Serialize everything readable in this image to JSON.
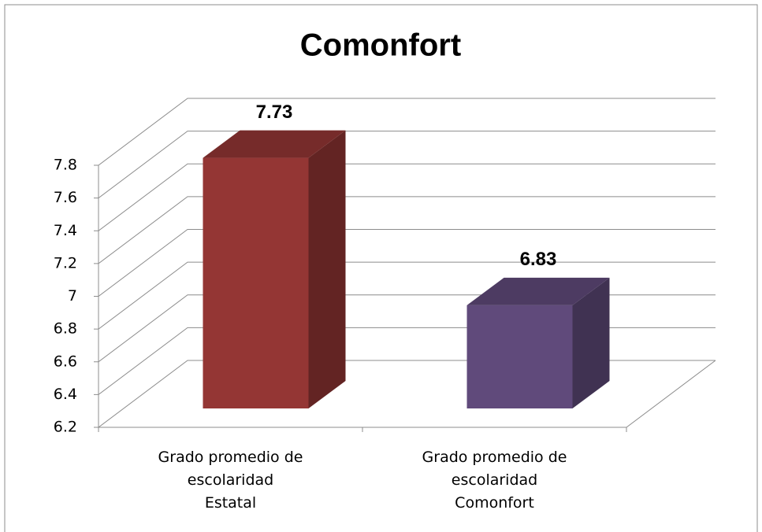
{
  "chart_data": {
    "type": "bar3d",
    "title": "Comonfort",
    "categories": [
      "Grado promedio de\nescolaridad\nEstatal",
      "Grado promedio de\nescolaridad\nComonfort"
    ],
    "values": [
      7.73,
      6.83
    ],
    "colors": [
      "#943634",
      "#604a7b"
    ],
    "ylim": [
      6.2,
      7.8
    ],
    "yticks": [
      6.2,
      6.4,
      6.6,
      6.8,
      7,
      7.2,
      7.4,
      7.6,
      7.8
    ],
    "grid": true
  }
}
